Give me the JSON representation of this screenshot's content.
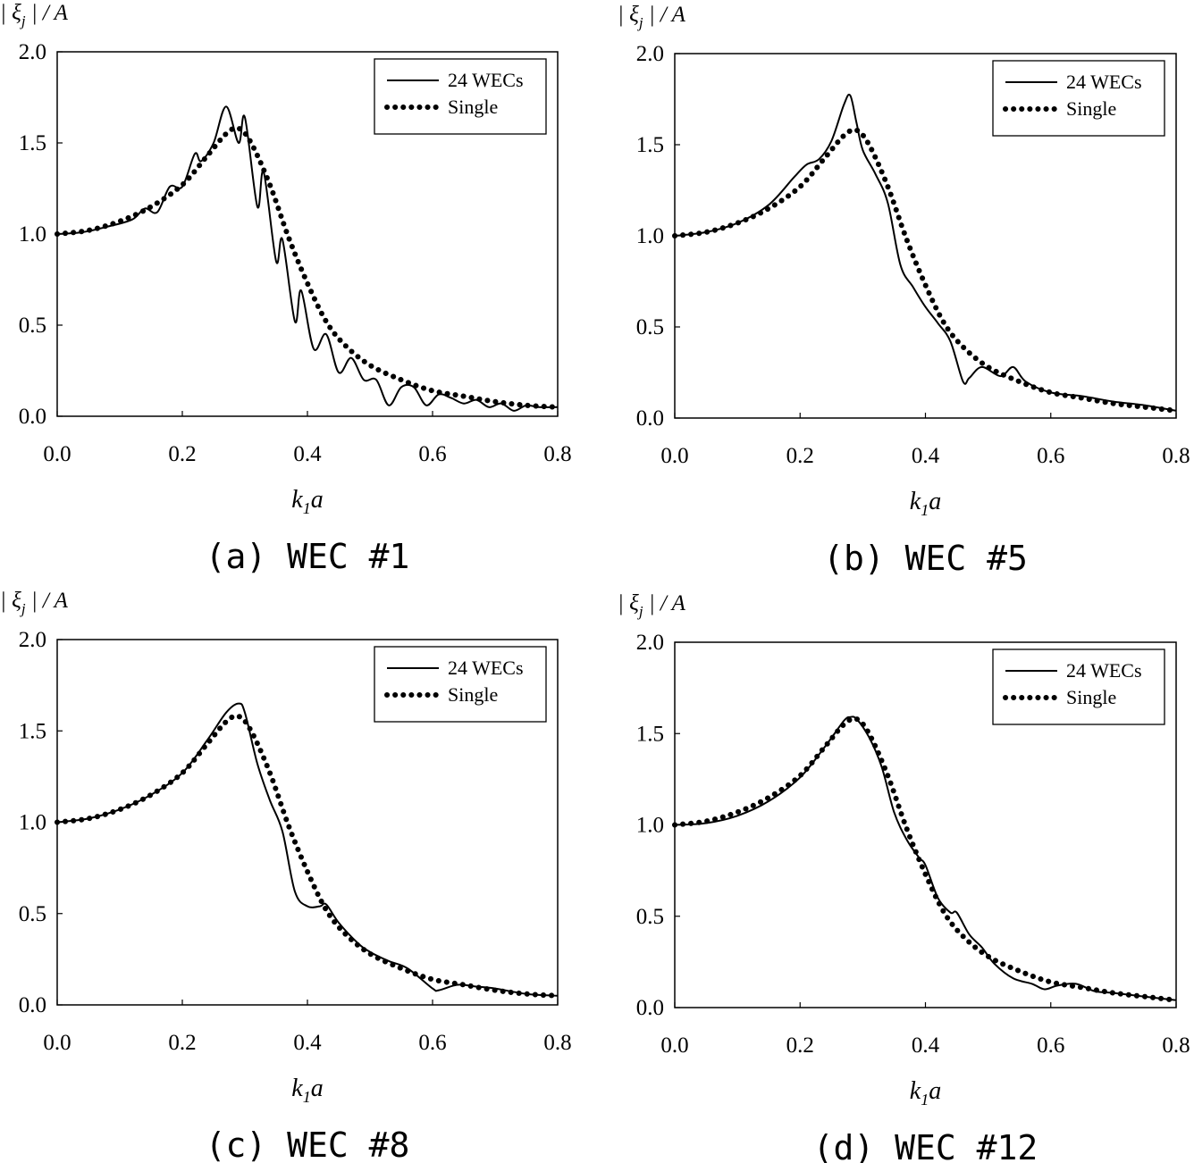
{
  "chart_data": [
    {
      "type": "line",
      "caption": "(a) WEC #1",
      "ylabel": "| ξj | / A",
      "xlabel": "k1a",
      "xlim": [
        0,
        0.8
      ],
      "ylim": [
        0,
        2.0
      ],
      "xticks": [
        "0.0",
        "0.2",
        "0.4",
        "0.6",
        "0.8"
      ],
      "yticks": [
        "0.0",
        "0.5",
        "1.0",
        "1.5",
        "2.0"
      ],
      "legend_position": "top-right",
      "series": [
        {
          "name": "24 WECs",
          "style": "solid",
          "x": [
            0,
            0.04,
            0.08,
            0.12,
            0.14,
            0.16,
            0.18,
            0.2,
            0.22,
            0.23,
            0.25,
            0.27,
            0.29,
            0.3,
            0.32,
            0.33,
            0.35,
            0.36,
            0.38,
            0.39,
            0.41,
            0.43,
            0.45,
            0.47,
            0.49,
            0.51,
            0.53,
            0.55,
            0.57,
            0.59,
            0.61,
            0.63,
            0.65,
            0.67,
            0.69,
            0.71,
            0.73,
            0.75,
            0.77,
            0.8
          ],
          "y": [
            1.0,
            1.01,
            1.04,
            1.08,
            1.14,
            1.12,
            1.26,
            1.26,
            1.44,
            1.4,
            1.5,
            1.7,
            1.5,
            1.64,
            1.15,
            1.34,
            0.85,
            0.97,
            0.52,
            0.69,
            0.37,
            0.45,
            0.24,
            0.32,
            0.2,
            0.2,
            0.06,
            0.16,
            0.16,
            0.06,
            0.12,
            0.1,
            0.07,
            0.09,
            0.05,
            0.07,
            0.03,
            0.06,
            0.05,
            0.05
          ]
        },
        {
          "name": "Single",
          "style": "dotted",
          "x": [
            0,
            0.05,
            0.1,
            0.15,
            0.2,
            0.24,
            0.27,
            0.29,
            0.31,
            0.34,
            0.37,
            0.4,
            0.43,
            0.46,
            0.5,
            0.55,
            0.6,
            0.65,
            0.7,
            0.75,
            0.8
          ],
          "y": [
            1.0,
            1.02,
            1.07,
            1.15,
            1.27,
            1.43,
            1.55,
            1.58,
            1.5,
            1.27,
            0.98,
            0.73,
            0.52,
            0.39,
            0.28,
            0.2,
            0.14,
            0.11,
            0.08,
            0.06,
            0.05
          ]
        }
      ]
    },
    {
      "type": "line",
      "caption": "(b) WEC #5",
      "ylabel": "| ξj | / A",
      "xlabel": "k1a",
      "xlim": [
        0,
        0.8
      ],
      "ylim": [
        0,
        2.0
      ],
      "xticks": [
        "0.0",
        "0.2",
        "0.4",
        "0.6",
        "0.8"
      ],
      "yticks": [
        "0.0",
        "0.5",
        "1.0",
        "1.5",
        "2.0"
      ],
      "legend_position": "top-right",
      "series": [
        {
          "name": "24 WECs",
          "style": "solid",
          "x": [
            0,
            0.05,
            0.1,
            0.15,
            0.19,
            0.21,
            0.23,
            0.25,
            0.27,
            0.28,
            0.29,
            0.3,
            0.32,
            0.34,
            0.36,
            0.38,
            0.4,
            0.42,
            0.44,
            0.46,
            0.47,
            0.49,
            0.52,
            0.54,
            0.56,
            0.6,
            0.65,
            0.7,
            0.75,
            0.8
          ],
          "y": [
            1.0,
            1.02,
            1.07,
            1.17,
            1.32,
            1.39,
            1.42,
            1.52,
            1.72,
            1.77,
            1.62,
            1.47,
            1.34,
            1.18,
            0.84,
            0.72,
            0.61,
            0.52,
            0.42,
            0.2,
            0.22,
            0.28,
            0.23,
            0.28,
            0.2,
            0.14,
            0.12,
            0.09,
            0.07,
            0.04
          ]
        },
        {
          "name": "Single",
          "style": "dotted",
          "x": [
            0,
            0.05,
            0.1,
            0.15,
            0.2,
            0.24,
            0.27,
            0.29,
            0.31,
            0.34,
            0.37,
            0.4,
            0.43,
            0.46,
            0.5,
            0.55,
            0.6,
            0.65,
            0.7,
            0.75,
            0.8
          ],
          "y": [
            1.0,
            1.02,
            1.07,
            1.15,
            1.27,
            1.43,
            1.55,
            1.58,
            1.5,
            1.27,
            0.98,
            0.73,
            0.52,
            0.39,
            0.28,
            0.2,
            0.14,
            0.11,
            0.08,
            0.06,
            0.04
          ]
        }
      ]
    },
    {
      "type": "line",
      "caption": "(c) WEC #8",
      "ylabel": "| ξj | / A",
      "xlabel": "k1a",
      "xlim": [
        0,
        0.8
      ],
      "ylim": [
        0,
        2.0
      ],
      "xticks": [
        "0.0",
        "0.2",
        "0.4",
        "0.6",
        "0.8"
      ],
      "yticks": [
        "0.0",
        "0.5",
        "1.0",
        "1.5",
        "2.0"
      ],
      "legend_position": "top-right",
      "series": [
        {
          "name": "24 WECs",
          "style": "solid",
          "x": [
            0,
            0.05,
            0.1,
            0.15,
            0.2,
            0.24,
            0.27,
            0.29,
            0.3,
            0.32,
            0.34,
            0.36,
            0.38,
            0.4,
            0.42,
            0.43,
            0.45,
            0.48,
            0.5,
            0.53,
            0.56,
            0.6,
            0.61,
            0.64,
            0.67,
            0.7,
            0.75,
            0.8
          ],
          "y": [
            1.0,
            1.02,
            1.07,
            1.15,
            1.27,
            1.45,
            1.6,
            1.65,
            1.6,
            1.32,
            1.12,
            0.95,
            0.62,
            0.54,
            0.54,
            0.55,
            0.45,
            0.34,
            0.29,
            0.24,
            0.2,
            0.09,
            0.08,
            0.11,
            0.1,
            0.09,
            0.06,
            0.05
          ]
        },
        {
          "name": "Single",
          "style": "dotted",
          "x": [
            0,
            0.05,
            0.1,
            0.15,
            0.2,
            0.24,
            0.27,
            0.29,
            0.31,
            0.34,
            0.37,
            0.4,
            0.43,
            0.46,
            0.5,
            0.55,
            0.6,
            0.65,
            0.7,
            0.75,
            0.8
          ],
          "y": [
            1.0,
            1.02,
            1.07,
            1.15,
            1.27,
            1.43,
            1.55,
            1.58,
            1.5,
            1.27,
            0.98,
            0.73,
            0.52,
            0.39,
            0.28,
            0.2,
            0.14,
            0.11,
            0.08,
            0.06,
            0.05
          ]
        }
      ]
    },
    {
      "type": "line",
      "caption": "(d) WEC #12",
      "ylabel": "| ξj | / A",
      "xlabel": "k1a",
      "xlim": [
        0,
        0.8
      ],
      "ylim": [
        0,
        2.0
      ],
      "xticks": [
        "0.0",
        "0.2",
        "0.4",
        "0.6",
        "0.8"
      ],
      "yticks": [
        "0.0",
        "0.5",
        "1.0",
        "1.5",
        "2.0"
      ],
      "legend_position": "top-right",
      "series": [
        {
          "name": "24 WECs",
          "style": "solid",
          "x": [
            0,
            0.05,
            0.1,
            0.15,
            0.2,
            0.24,
            0.27,
            0.28,
            0.29,
            0.31,
            0.33,
            0.35,
            0.37,
            0.39,
            0.4,
            0.42,
            0.44,
            0.45,
            0.47,
            0.49,
            0.51,
            0.54,
            0.57,
            0.59,
            0.61,
            0.64,
            0.67,
            0.7,
            0.75,
            0.8
          ],
          "y": [
            1.0,
            1.01,
            1.05,
            1.13,
            1.26,
            1.43,
            1.57,
            1.59,
            1.58,
            1.48,
            1.32,
            1.07,
            0.92,
            0.82,
            0.78,
            0.6,
            0.52,
            0.52,
            0.4,
            0.33,
            0.24,
            0.16,
            0.13,
            0.1,
            0.12,
            0.13,
            0.09,
            0.08,
            0.06,
            0.04
          ]
        },
        {
          "name": "Single",
          "style": "dotted",
          "x": [
            0,
            0.05,
            0.1,
            0.15,
            0.2,
            0.24,
            0.27,
            0.29,
            0.31,
            0.34,
            0.37,
            0.4,
            0.43,
            0.46,
            0.5,
            0.55,
            0.6,
            0.65,
            0.7,
            0.75,
            0.8
          ],
          "y": [
            1.0,
            1.02,
            1.07,
            1.15,
            1.27,
            1.43,
            1.55,
            1.58,
            1.5,
            1.27,
            0.98,
            0.73,
            0.52,
            0.39,
            0.28,
            0.2,
            0.14,
            0.11,
            0.08,
            0.06,
            0.04
          ]
        }
      ]
    }
  ]
}
